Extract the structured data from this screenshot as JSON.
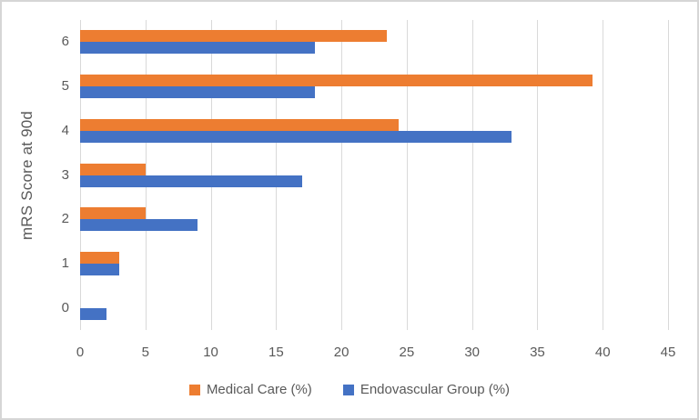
{
  "chart_data": {
    "type": "bar",
    "orientation": "horizontal",
    "title": "",
    "xlabel": "",
    "ylabel": "mRS Score at 90d",
    "categories": [
      "6",
      "5",
      "4",
      "3",
      "2",
      "1",
      "0"
    ],
    "series": [
      {
        "name": "Medical Care (%)",
        "color": "#ED7D31",
        "values": [
          23.5,
          39.2,
          24.4,
          5,
          5,
          3,
          0
        ]
      },
      {
        "name": "Endovascular Group (%)",
        "color": "#4472C4",
        "values": [
          18,
          18,
          33,
          17,
          9,
          3,
          2
        ]
      }
    ],
    "xlim": [
      0,
      45
    ],
    "xticks": [
      0,
      5,
      10,
      15,
      20,
      25,
      30,
      35,
      40,
      45
    ],
    "grid": true,
    "legend_position": "bottom"
  },
  "colors": {
    "series_medical": "#ED7D31",
    "series_endovascular": "#4472C4",
    "gridline": "#D9D9D9",
    "axis_text": "#595959",
    "chart_border": "#D6D6D6",
    "background": "#FFFFFF"
  }
}
